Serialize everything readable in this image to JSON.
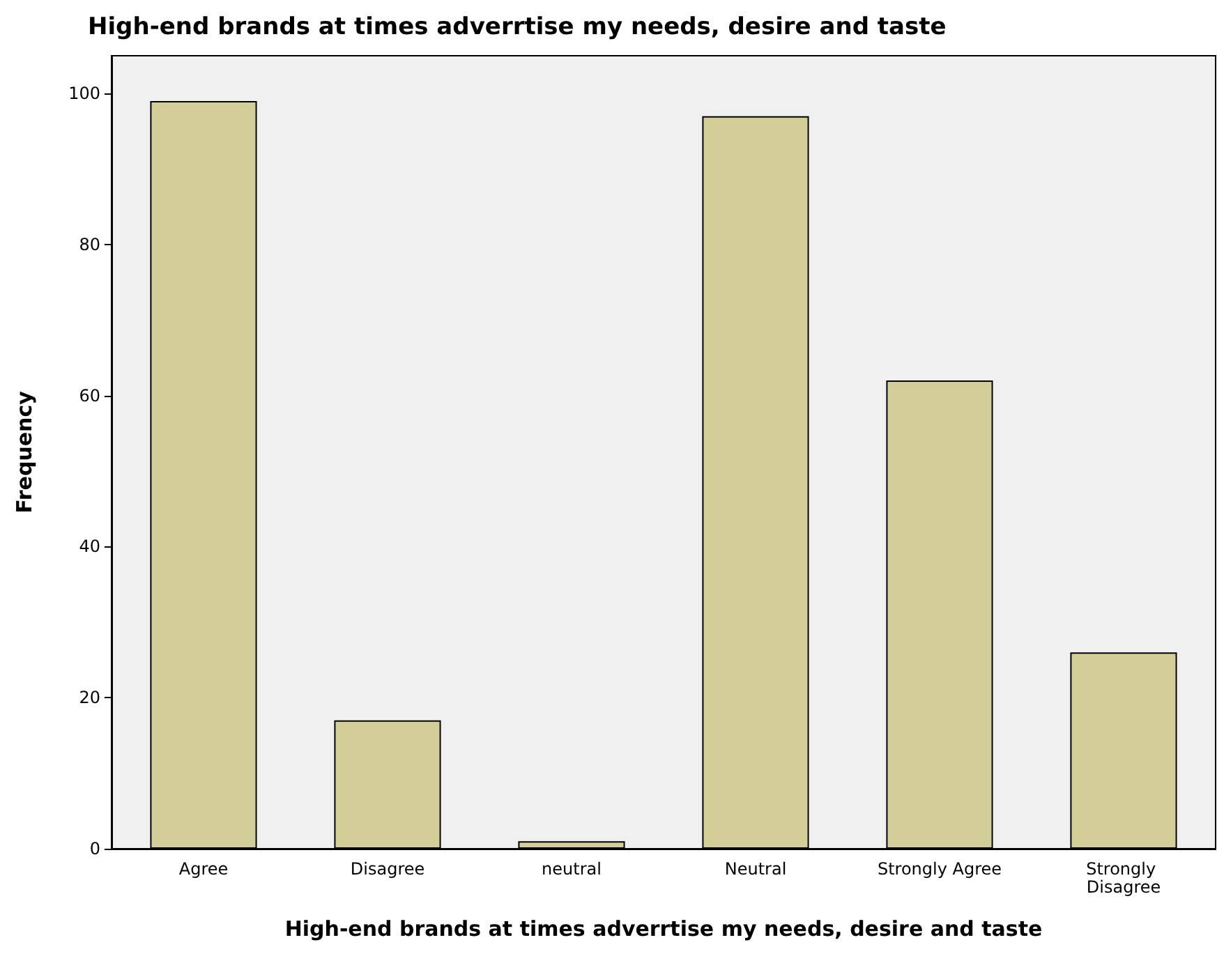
{
  "chart_data": {
    "type": "bar",
    "title": "High-end brands at times adverrtise my needs, desire and taste",
    "xlabel": "High-end brands at times adverrtise my needs, desire and taste",
    "ylabel": "Frequency",
    "categories": [
      "Agree",
      "Disagree",
      "neutral",
      "Neutral",
      "Strongly Agree",
      "Strongly Disagree"
    ],
    "values": [
      99,
      17,
      1,
      97,
      62,
      26
    ],
    "color": "#d3ce97",
    "ylim": [
      0,
      105
    ],
    "yticks": [
      0,
      20,
      40,
      60,
      80,
      100
    ],
    "grid": false
  }
}
